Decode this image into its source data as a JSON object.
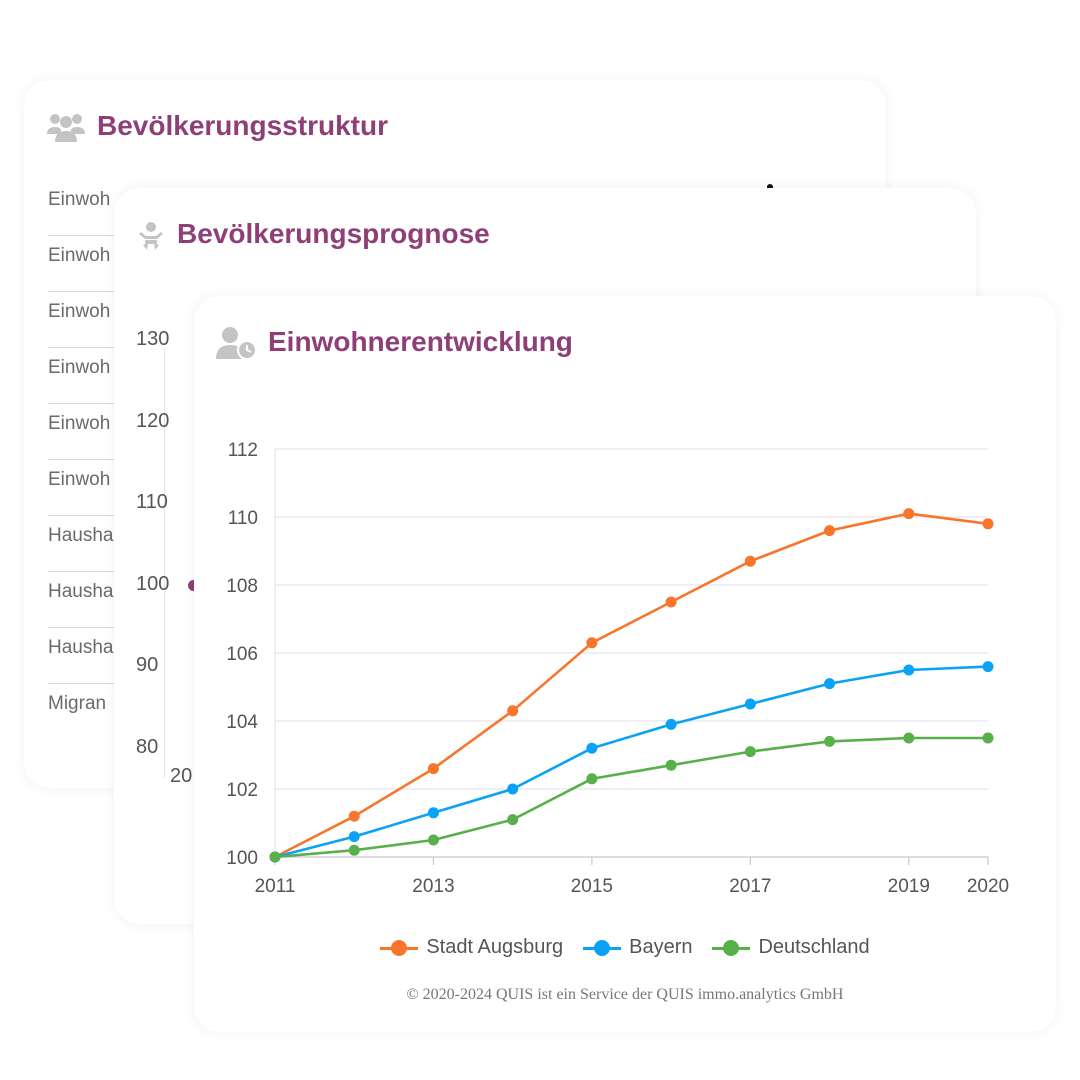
{
  "struktur": {
    "title": "Bevölkerungsstruktur",
    "icon": "users-icon",
    "rows": [
      "Einwoh",
      "Einwoh",
      "Einwoh",
      "Einwoh",
      "Einwoh",
      "Einwoh",
      "Hausha",
      "Hausha",
      "Hausha",
      "Migran"
    ]
  },
  "prognose": {
    "title": "Bevölkerungsprognose",
    "icon": "baby-icon",
    "y_ticks": [
      "130",
      "120",
      "110",
      "100",
      "90",
      "80"
    ],
    "x_tick": "20"
  },
  "entwicklung": {
    "title": "Einwohnerentwicklung",
    "icon": "user-clock-icon",
    "credits": "© 2020-2024 QUIS ist ein Service der QUIS immo.analytics GmbH"
  },
  "colors": {
    "accent": "#8e3f78",
    "stadt_augsburg": "#f7762c",
    "bayern": "#0aa2f6",
    "deutschland": "#57b04a",
    "grid": "#e4e4ee",
    "icon_gray": "#c4c4c4"
  },
  "chart_data": {
    "type": "line",
    "title": "Einwohnerentwicklung",
    "x": [
      2011,
      2012,
      2013,
      2014,
      2015,
      2016,
      2017,
      2018,
      2019,
      2020
    ],
    "x_tick_labels": [
      "2011",
      "2013",
      "2015",
      "2017",
      "2019",
      "2020"
    ],
    "y_tick_labels": [
      "100",
      "102",
      "104",
      "106",
      "108",
      "110",
      "112"
    ],
    "ylim": [
      100,
      112
    ],
    "grid": true,
    "legend_position": "bottom",
    "series": [
      {
        "name": "Stadt Augsburg",
        "color": "#f7762c",
        "values": [
          100.0,
          101.2,
          102.6,
          104.3,
          106.3,
          107.5,
          108.7,
          109.6,
          110.1,
          109.8
        ]
      },
      {
        "name": "Bayern",
        "color": "#0aa2f6",
        "values": [
          100.0,
          100.6,
          101.3,
          102.0,
          103.2,
          103.9,
          104.5,
          105.1,
          105.5,
          105.6
        ]
      },
      {
        "name": "Deutschland",
        "color": "#57b04a",
        "values": [
          100.0,
          100.2,
          100.5,
          101.1,
          102.3,
          102.7,
          103.1,
          103.4,
          103.5,
          103.5
        ]
      }
    ]
  }
}
